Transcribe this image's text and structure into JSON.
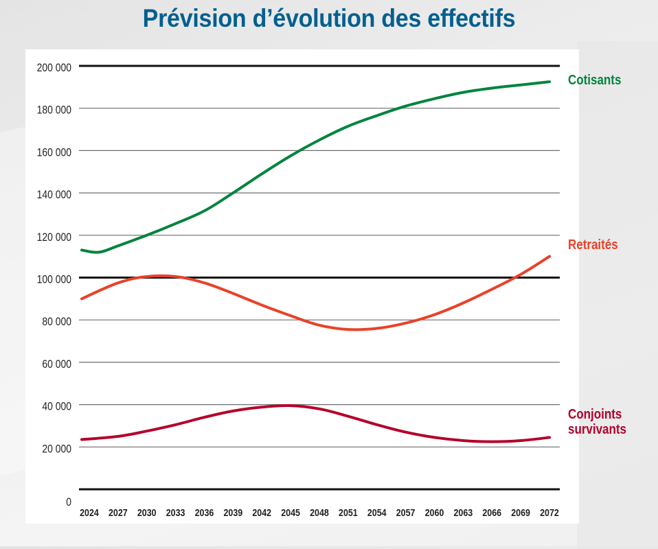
{
  "title": "Prévision d’évolution des effectifs",
  "chart_data": {
    "type": "line",
    "title": "Prévision d’évolution des effectifs",
    "xlabel": "",
    "ylabel": "",
    "xlim": [
      2024,
      2072
    ],
    "ylim": [
      0,
      200000
    ],
    "grid": true,
    "legend_placement": "right, inline at line ends",
    "x_ticks": [
      2024,
      2027,
      2030,
      2033,
      2036,
      2039,
      2042,
      2045,
      2048,
      2051,
      2054,
      2057,
      2060,
      2063,
      2066,
      2069,
      2072
    ],
    "x_tick_labels": [
      "2024",
      "2027",
      "2030",
      "2033",
      "2036",
      "2039",
      "2042",
      "2045",
      "2048",
      "2051",
      "2054",
      "2057",
      "2060",
      "2063",
      "2066",
      "2069",
      "2072"
    ],
    "y_ticks": [
      0,
      20000,
      40000,
      60000,
      80000,
      100000,
      120000,
      140000,
      160000,
      180000,
      200000
    ],
    "y_tick_labels": [
      "0",
      "20 000",
      "40 000",
      "60 000",
      "80 000",
      "100 000",
      "120 000",
      "140 000",
      "160 000",
      "180 000",
      "200 000"
    ],
    "major_gridlines": [
      0,
      100000,
      200000
    ],
    "series": [
      {
        "name": "Cotisants",
        "label_lines": [
          "Cotisants"
        ],
        "color": "#00843d",
        "x": [
          2024,
          2025,
          2027,
          2030,
          2033,
          2036,
          2039,
          2042,
          2045,
          2048,
          2051,
          2054,
          2057,
          2060,
          2063,
          2066,
          2069,
          2072
        ],
        "values": [
          113000,
          112000,
          115000,
          120000,
          125500,
          131500,
          140000,
          149000,
          157500,
          165000,
          171500,
          176500,
          181000,
          184500,
          187500,
          189500,
          191000,
          192500
        ]
      },
      {
        "name": "Retraités",
        "label_lines": [
          "Retraités"
        ],
        "color": "#ea4128",
        "x": [
          2024,
          2027,
          2030,
          2033,
          2036,
          2039,
          2042,
          2045,
          2048,
          2051,
          2054,
          2057,
          2060,
          2063,
          2066,
          2069,
          2072
        ],
        "values": [
          90000,
          97500,
          100500,
          100500,
          97500,
          92500,
          87000,
          82000,
          77500,
          75500,
          76000,
          78500,
          82500,
          88000,
          94500,
          101500,
          110000
        ]
      },
      {
        "name": "Conjoints survivants",
        "label_lines": [
          "Conjoints",
          "survivants"
        ],
        "color": "#b5002a",
        "x": [
          2024,
          2027,
          2030,
          2033,
          2036,
          2039,
          2042,
          2045,
          2048,
          2051,
          2054,
          2057,
          2060,
          2063,
          2066,
          2069,
          2072
        ],
        "values": [
          23500,
          25000,
          27500,
          30500,
          34000,
          37000,
          38800,
          39500,
          38000,
          34500,
          30500,
          27000,
          24500,
          23000,
          22500,
          23000,
          24500
        ]
      }
    ]
  }
}
